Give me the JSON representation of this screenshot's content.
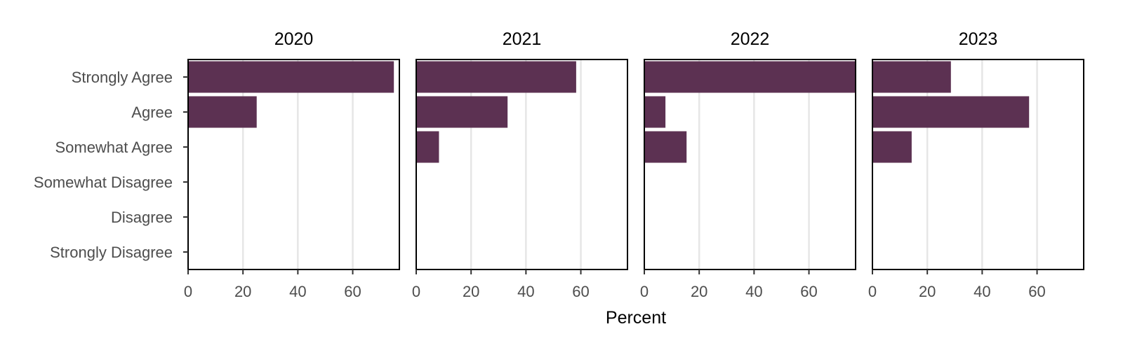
{
  "chart_data": {
    "type": "bar",
    "orientation": "horizontal",
    "facet_by": "year",
    "categories": [
      "Strongly Agree",
      "Agree",
      "Somewhat Agree",
      "Somewhat Disagree",
      "Disagree",
      "Strongly Disagree"
    ],
    "panels": [
      {
        "title": "2020",
        "values": [
          75,
          25,
          0,
          0,
          0,
          0
        ]
      },
      {
        "title": "2021",
        "values": [
          58.3,
          33.3,
          8.3,
          0,
          0,
          0
        ]
      },
      {
        "title": "2022",
        "values": [
          76.9,
          7.7,
          15.4,
          0,
          0,
          0
        ]
      },
      {
        "title": "2023",
        "values": [
          28.6,
          57.1,
          14.3,
          0,
          0,
          0
        ]
      }
    ],
    "xlabel": "Percent",
    "ylabel": "",
    "xlim": [
      0,
      77
    ],
    "xticks": [
      0,
      20,
      40,
      60
    ],
    "grid": "vertical",
    "legend": "none",
    "bar_color": "#5c3152"
  }
}
